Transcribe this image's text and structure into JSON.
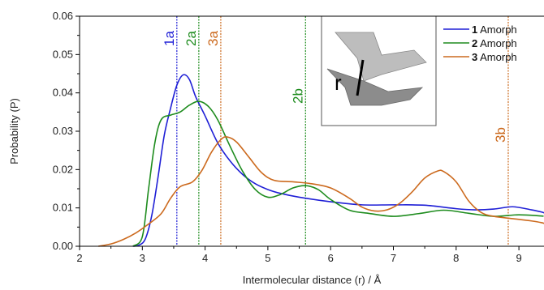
{
  "chart_data": {
    "type": "line",
    "xlabel": "Intermolecular distance (r) / Å",
    "ylabel": "Probability (P)",
    "xlim": [
      2,
      9.5
    ],
    "ylim": [
      0,
      0.06
    ],
    "x_ticks": [
      2,
      3,
      4,
      5,
      6,
      7,
      8,
      9
    ],
    "y_ticks": [
      0.0,
      0.01,
      0.02,
      0.03,
      0.04,
      0.05,
      0.06
    ],
    "y_tick_labels": [
      "0.00",
      "0.01",
      "0.02",
      "0.03",
      "0.04",
      "0.05",
      "0.06"
    ],
    "grid": false,
    "legend_position": "top-right",
    "series": [
      {
        "name": "Amorph",
        "label_bold": "1",
        "color": "#1f1fd6",
        "points": [
          [
            2.85,
            0.0
          ],
          [
            2.95,
            0.0003
          ],
          [
            3.05,
            0.002
          ],
          [
            3.15,
            0.008
          ],
          [
            3.25,
            0.018
          ],
          [
            3.35,
            0.029
          ],
          [
            3.45,
            0.036
          ],
          [
            3.55,
            0.042
          ],
          [
            3.65,
            0.0447
          ],
          [
            3.75,
            0.0435
          ],
          [
            3.85,
            0.039
          ],
          [
            4.0,
            0.034
          ],
          [
            4.2,
            0.027
          ],
          [
            4.4,
            0.0222
          ],
          [
            4.6,
            0.0187
          ],
          [
            4.8,
            0.0163
          ],
          [
            5.0,
            0.0148
          ],
          [
            5.2,
            0.0138
          ],
          [
            5.5,
            0.0128
          ],
          [
            6.0,
            0.0116
          ],
          [
            6.5,
            0.0108
          ],
          [
            7.0,
            0.0108
          ],
          [
            7.5,
            0.0107
          ],
          [
            8.0,
            0.0098
          ],
          [
            8.3,
            0.0095
          ],
          [
            8.6,
            0.0097
          ],
          [
            8.9,
            0.0103
          ],
          [
            9.2,
            0.0095
          ],
          [
            9.5,
            0.0085
          ]
        ]
      },
      {
        "name": "Amorph",
        "label_bold": "2",
        "color": "#1e8c1e",
        "points": [
          [
            2.85,
            0.0
          ],
          [
            3.0,
            0.0025
          ],
          [
            3.1,
            0.015
          ],
          [
            3.2,
            0.027
          ],
          [
            3.3,
            0.033
          ],
          [
            3.45,
            0.0342
          ],
          [
            3.6,
            0.035
          ],
          [
            3.75,
            0.0368
          ],
          [
            3.9,
            0.0378
          ],
          [
            4.05,
            0.0365
          ],
          [
            4.2,
            0.033
          ],
          [
            4.4,
            0.026
          ],
          [
            4.6,
            0.0195
          ],
          [
            4.8,
            0.0148
          ],
          [
            5.0,
            0.0128
          ],
          [
            5.2,
            0.0135
          ],
          [
            5.4,
            0.0152
          ],
          [
            5.6,
            0.0158
          ],
          [
            5.8,
            0.0148
          ],
          [
            6.0,
            0.0122
          ],
          [
            6.3,
            0.0094
          ],
          [
            6.6,
            0.0086
          ],
          [
            7.0,
            0.0078
          ],
          [
            7.4,
            0.0085
          ],
          [
            7.8,
            0.0094
          ],
          [
            8.2,
            0.0086
          ],
          [
            8.6,
            0.0078
          ],
          [
            9.0,
            0.0082
          ],
          [
            9.5,
            0.0078
          ]
        ]
      },
      {
        "name": "Amorph",
        "label_bold": "3",
        "color": "#cc6a1e",
        "points": [
          [
            2.3,
            0.0
          ],
          [
            2.5,
            0.0006
          ],
          [
            2.7,
            0.0018
          ],
          [
            2.9,
            0.0035
          ],
          [
            3.1,
            0.0058
          ],
          [
            3.3,
            0.0085
          ],
          [
            3.45,
            0.0125
          ],
          [
            3.6,
            0.0155
          ],
          [
            3.8,
            0.0168
          ],
          [
            3.95,
            0.0198
          ],
          [
            4.1,
            0.0245
          ],
          [
            4.25,
            0.0278
          ],
          [
            4.35,
            0.0285
          ],
          [
            4.5,
            0.0272
          ],
          [
            4.7,
            0.0232
          ],
          [
            4.9,
            0.0192
          ],
          [
            5.1,
            0.0172
          ],
          [
            5.4,
            0.0168
          ],
          [
            5.7,
            0.0163
          ],
          [
            6.0,
            0.0152
          ],
          [
            6.3,
            0.0125
          ],
          [
            6.5,
            0.0102
          ],
          [
            6.7,
            0.0092
          ],
          [
            6.9,
            0.0095
          ],
          [
            7.1,
            0.0112
          ],
          [
            7.3,
            0.0142
          ],
          [
            7.5,
            0.0178
          ],
          [
            7.7,
            0.0196
          ],
          [
            7.8,
            0.0195
          ],
          [
            8.0,
            0.0168
          ],
          [
            8.2,
            0.0118
          ],
          [
            8.4,
            0.0088
          ],
          [
            8.6,
            0.0078
          ],
          [
            8.9,
            0.0072
          ],
          [
            9.2,
            0.0066
          ],
          [
            9.5,
            0.0058
          ]
        ]
      }
    ],
    "reference_lines": [
      {
        "x": 3.55,
        "label": "1a",
        "color": "#1f1fd6"
      },
      {
        "x": 3.9,
        "label": "2a",
        "color": "#1e8c1e"
      },
      {
        "x": 4.25,
        "label": "3a",
        "color": "#cc6a1e"
      },
      {
        "x": 5.6,
        "label": "2b",
        "color": "#1e8c1e"
      },
      {
        "x": 8.83,
        "label": "3b",
        "color": "#cc6a1e"
      }
    ],
    "inset": {
      "label": "r"
    }
  }
}
